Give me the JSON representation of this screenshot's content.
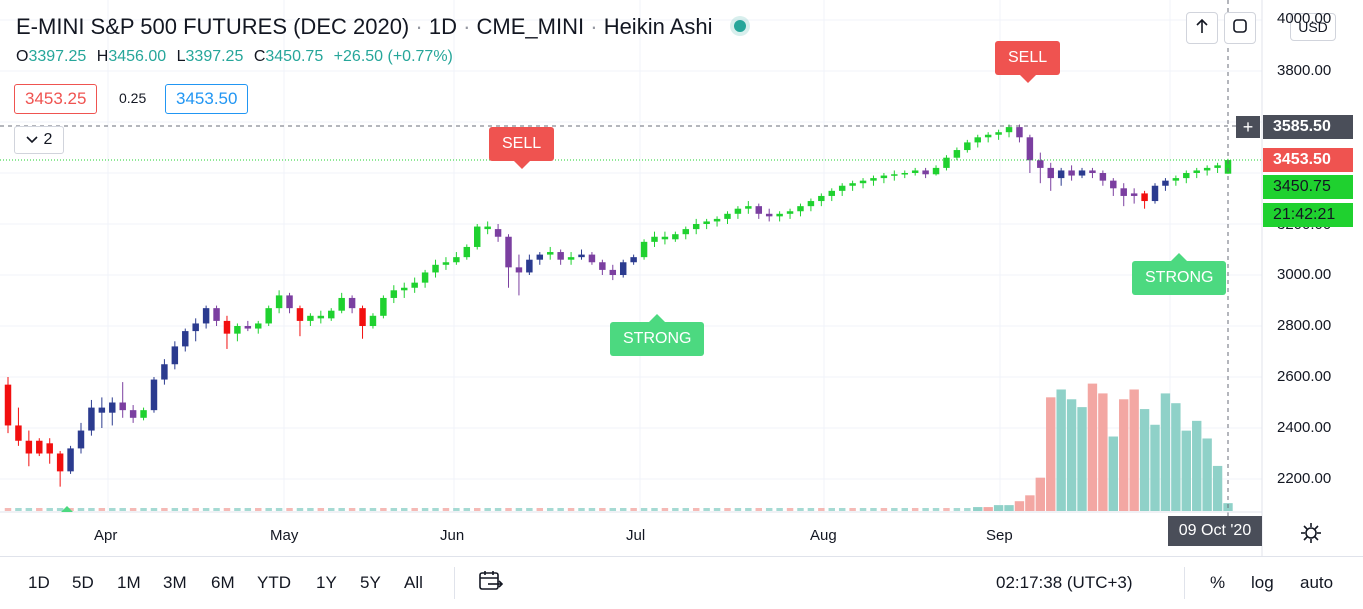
{
  "header": {
    "symbol_title": "E-MINI S&P 500 FUTURES (DEC 2020)",
    "sep": "·",
    "interval": "1D",
    "exchange": "CME_MINI",
    "chart_style": "Heikin Ashi"
  },
  "ohlc": {
    "o_label": "O",
    "o": "3397.25",
    "h_label": "H",
    "h": "3456.00",
    "l_label": "L",
    "l": "3397.25",
    "c_label": "C",
    "c": "3450.75",
    "change": "+26.50 (+0.77%)"
  },
  "quote": {
    "bid": "3453.25",
    "spread": "0.25",
    "ask": "3453.50"
  },
  "indicator_toggle": {
    "count": "2"
  },
  "currency": "USD",
  "price_axis": {
    "ticks": [
      "4000.00",
      "3800.00",
      "3000.00",
      "2800.00",
      "2600.00",
      "2400.00",
      "2200.00"
    ],
    "partial_tick": "3200.00",
    "crosshair_price": "3585.50",
    "last_price": "3453.50",
    "close_price": "3450.75",
    "countdown": "21:42:21"
  },
  "time_axis": {
    "months": [
      "Apr",
      "May",
      "Jun",
      "Jul",
      "Aug",
      "Sep"
    ],
    "crosshair_date": "09 Oct '20"
  },
  "signals": [
    {
      "type": "sell",
      "label": "SELL"
    },
    {
      "type": "sell",
      "label": "SELL"
    },
    {
      "type": "strong",
      "label": "STRONG"
    },
    {
      "type": "strong",
      "label": "STRONG"
    }
  ],
  "toolbar": {
    "ranges": [
      "1D",
      "5D",
      "1M",
      "3M",
      "6M",
      "YTD",
      "1Y",
      "5Y",
      "All"
    ],
    "clock": "02:17:38 (UTC+3)",
    "percent": "%",
    "log": "log",
    "auto": "auto"
  },
  "colors": {
    "bull": "#1fd12f",
    "bear_purple": "#7b3fa0",
    "bear_navy": "#2b3b8f",
    "red": "#f20f0f",
    "vol_up": "#8fd1c8",
    "vol_down": "#f3a7a3",
    "sell": "#ef5350",
    "strong": "#4cd980"
  },
  "chart_data": {
    "type": "candlestick",
    "price_range": [
      2100,
      4000
    ],
    "candles": [
      {
        "o": 2570,
        "h": 2600,
        "l": 2380,
        "c": 2410,
        "col": "red"
      },
      {
        "o": 2410,
        "h": 2480,
        "l": 2330,
        "c": 2350,
        "col": "red"
      },
      {
        "o": 2350,
        "h": 2390,
        "l": 2250,
        "c": 2300,
        "col": "red"
      },
      {
        "o": 2300,
        "h": 2360,
        "l": 2290,
        "c": 2350,
        "col": "red"
      },
      {
        "o": 2340,
        "h": 2360,
        "l": 2260,
        "c": 2300,
        "col": "red"
      },
      {
        "o": 2300,
        "h": 2310,
        "l": 2170,
        "c": 2230,
        "col": "red"
      },
      {
        "o": 2230,
        "h": 2330,
        "l": 2220,
        "c": 2320,
        "col": "navy"
      },
      {
        "o": 2320,
        "h": 2420,
        "l": 2300,
        "c": 2390,
        "col": "navy"
      },
      {
        "o": 2390,
        "h": 2510,
        "l": 2370,
        "c": 2480,
        "col": "navy"
      },
      {
        "o": 2480,
        "h": 2520,
        "l": 2400,
        "c": 2460,
        "col": "navy"
      },
      {
        "o": 2460,
        "h": 2520,
        "l": 2410,
        "c": 2500,
        "col": "navy"
      },
      {
        "o": 2500,
        "h": 2580,
        "l": 2440,
        "c": 2470,
        "col": "purple"
      },
      {
        "o": 2470,
        "h": 2490,
        "l": 2420,
        "c": 2440,
        "col": "purple"
      },
      {
        "o": 2440,
        "h": 2480,
        "l": 2430,
        "c": 2470,
        "col": "green"
      },
      {
        "o": 2470,
        "h": 2600,
        "l": 2460,
        "c": 2590,
        "col": "navy"
      },
      {
        "o": 2590,
        "h": 2670,
        "l": 2570,
        "c": 2650,
        "col": "navy"
      },
      {
        "o": 2650,
        "h": 2740,
        "l": 2630,
        "c": 2720,
        "col": "navy"
      },
      {
        "o": 2720,
        "h": 2790,
        "l": 2700,
        "c": 2780,
        "col": "navy"
      },
      {
        "o": 2780,
        "h": 2830,
        "l": 2740,
        "c": 2810,
        "col": "navy"
      },
      {
        "o": 2810,
        "h": 2880,
        "l": 2790,
        "c": 2870,
        "col": "navy"
      },
      {
        "o": 2870,
        "h": 2880,
        "l": 2800,
        "c": 2820,
        "col": "purple"
      },
      {
        "o": 2820,
        "h": 2840,
        "l": 2710,
        "c": 2770,
        "col": "red"
      },
      {
        "o": 2770,
        "h": 2810,
        "l": 2740,
        "c": 2800,
        "col": "green"
      },
      {
        "o": 2800,
        "h": 2820,
        "l": 2780,
        "c": 2790,
        "col": "purple"
      },
      {
        "o": 2790,
        "h": 2820,
        "l": 2770,
        "c": 2810,
        "col": "green"
      },
      {
        "o": 2810,
        "h": 2880,
        "l": 2800,
        "c": 2870,
        "col": "green"
      },
      {
        "o": 2870,
        "h": 2940,
        "l": 2850,
        "c": 2920,
        "col": "green"
      },
      {
        "o": 2920,
        "h": 2930,
        "l": 2850,
        "c": 2870,
        "col": "purple"
      },
      {
        "o": 2870,
        "h": 2880,
        "l": 2760,
        "c": 2820,
        "col": "red"
      },
      {
        "o": 2820,
        "h": 2850,
        "l": 2800,
        "c": 2840,
        "col": "green"
      },
      {
        "o": 2840,
        "h": 2860,
        "l": 2810,
        "c": 2830,
        "col": "green"
      },
      {
        "o": 2830,
        "h": 2870,
        "l": 2820,
        "c": 2860,
        "col": "green"
      },
      {
        "o": 2860,
        "h": 2930,
        "l": 2850,
        "c": 2910,
        "col": "green"
      },
      {
        "o": 2910,
        "h": 2920,
        "l": 2850,
        "c": 2870,
        "col": "purple"
      },
      {
        "o": 2870,
        "h": 2880,
        "l": 2750,
        "c": 2800,
        "col": "red"
      },
      {
        "o": 2800,
        "h": 2850,
        "l": 2790,
        "c": 2840,
        "col": "green"
      },
      {
        "o": 2840,
        "h": 2920,
        "l": 2830,
        "c": 2910,
        "col": "green"
      },
      {
        "o": 2910,
        "h": 2960,
        "l": 2890,
        "c": 2940,
        "col": "green"
      },
      {
        "o": 2940,
        "h": 2970,
        "l": 2910,
        "c": 2950,
        "col": "green"
      },
      {
        "o": 2950,
        "h": 2990,
        "l": 2930,
        "c": 2970,
        "col": "green"
      },
      {
        "o": 2970,
        "h": 3020,
        "l": 2950,
        "c": 3010,
        "col": "green"
      },
      {
        "o": 3010,
        "h": 3060,
        "l": 2990,
        "c": 3040,
        "col": "green"
      },
      {
        "o": 3040,
        "h": 3070,
        "l": 3020,
        "c": 3050,
        "col": "green"
      },
      {
        "o": 3050,
        "h": 3090,
        "l": 3040,
        "c": 3070,
        "col": "green"
      },
      {
        "o": 3070,
        "h": 3120,
        "l": 3060,
        "c": 3110,
        "col": "green"
      },
      {
        "o": 3110,
        "h": 3200,
        "l": 3100,
        "c": 3190,
        "col": "green"
      },
      {
        "o": 3190,
        "h": 3210,
        "l": 3160,
        "c": 3180,
        "col": "green"
      },
      {
        "o": 3180,
        "h": 3200,
        "l": 3130,
        "c": 3150,
        "col": "purple"
      },
      {
        "o": 3150,
        "h": 3160,
        "l": 2950,
        "c": 3030,
        "col": "purple"
      },
      {
        "o": 3030,
        "h": 3080,
        "l": 2920,
        "c": 3010,
        "col": "purple"
      },
      {
        "o": 3010,
        "h": 3080,
        "l": 3000,
        "c": 3060,
        "col": "navy"
      },
      {
        "o": 3060,
        "h": 3090,
        "l": 3040,
        "c": 3080,
        "col": "navy"
      },
      {
        "o": 3080,
        "h": 3110,
        "l": 3060,
        "c": 3090,
        "col": "green"
      },
      {
        "o": 3090,
        "h": 3100,
        "l": 3040,
        "c": 3060,
        "col": "purple"
      },
      {
        "o": 3060,
        "h": 3090,
        "l": 3040,
        "c": 3070,
        "col": "green"
      },
      {
        "o": 3070,
        "h": 3100,
        "l": 3060,
        "c": 3080,
        "col": "navy"
      },
      {
        "o": 3080,
        "h": 3090,
        "l": 3040,
        "c": 3050,
        "col": "purple"
      },
      {
        "o": 3050,
        "h": 3060,
        "l": 3000,
        "c": 3020,
        "col": "purple"
      },
      {
        "o": 3020,
        "h": 3040,
        "l": 2980,
        "c": 3000,
        "col": "purple"
      },
      {
        "o": 3000,
        "h": 3060,
        "l": 2990,
        "c": 3050,
        "col": "navy"
      },
      {
        "o": 3050,
        "h": 3080,
        "l": 3040,
        "c": 3070,
        "col": "navy"
      },
      {
        "o": 3070,
        "h": 3140,
        "l": 3060,
        "c": 3130,
        "col": "green"
      },
      {
        "o": 3130,
        "h": 3170,
        "l": 3110,
        "c": 3150,
        "col": "green"
      },
      {
        "o": 3150,
        "h": 3170,
        "l": 3120,
        "c": 3140,
        "col": "green"
      },
      {
        "o": 3140,
        "h": 3170,
        "l": 3130,
        "c": 3160,
        "col": "green"
      },
      {
        "o": 3160,
        "h": 3190,
        "l": 3140,
        "c": 3180,
        "col": "green"
      },
      {
        "o": 3180,
        "h": 3220,
        "l": 3160,
        "c": 3200,
        "col": "green"
      },
      {
        "o": 3200,
        "h": 3220,
        "l": 3180,
        "c": 3210,
        "col": "green"
      },
      {
        "o": 3210,
        "h": 3230,
        "l": 3190,
        "c": 3220,
        "col": "green"
      },
      {
        "o": 3220,
        "h": 3250,
        "l": 3200,
        "c": 3240,
        "col": "green"
      },
      {
        "o": 3240,
        "h": 3270,
        "l": 3220,
        "c": 3260,
        "col": "green"
      },
      {
        "o": 3260,
        "h": 3290,
        "l": 3240,
        "c": 3270,
        "col": "green"
      },
      {
        "o": 3270,
        "h": 3280,
        "l": 3220,
        "c": 3240,
        "col": "purple"
      },
      {
        "o": 3240,
        "h": 3260,
        "l": 3210,
        "c": 3230,
        "col": "purple"
      },
      {
        "o": 3230,
        "h": 3250,
        "l": 3210,
        "c": 3240,
        "col": "green"
      },
      {
        "o": 3240,
        "h": 3260,
        "l": 3220,
        "c": 3250,
        "col": "green"
      },
      {
        "o": 3250,
        "h": 3280,
        "l": 3230,
        "c": 3270,
        "col": "green"
      },
      {
        "o": 3270,
        "h": 3300,
        "l": 3250,
        "c": 3290,
        "col": "green"
      },
      {
        "o": 3290,
        "h": 3320,
        "l": 3270,
        "c": 3310,
        "col": "green"
      },
      {
        "o": 3310,
        "h": 3340,
        "l": 3290,
        "c": 3330,
        "col": "green"
      },
      {
        "o": 3330,
        "h": 3360,
        "l": 3310,
        "c": 3350,
        "col": "green"
      },
      {
        "o": 3350,
        "h": 3370,
        "l": 3330,
        "c": 3360,
        "col": "green"
      },
      {
        "o": 3360,
        "h": 3380,
        "l": 3340,
        "c": 3370,
        "col": "green"
      },
      {
        "o": 3370,
        "h": 3390,
        "l": 3350,
        "c": 3380,
        "col": "green"
      },
      {
        "o": 3380,
        "h": 3400,
        "l": 3360,
        "c": 3390,
        "col": "green"
      },
      {
        "o": 3390,
        "h": 3410,
        "l": 3370,
        "c": 3395,
        "col": "green"
      },
      {
        "o": 3395,
        "h": 3410,
        "l": 3380,
        "c": 3400,
        "col": "green"
      },
      {
        "o": 3400,
        "h": 3420,
        "l": 3390,
        "c": 3410,
        "col": "green"
      },
      {
        "o": 3410,
        "h": 3420,
        "l": 3380,
        "c": 3395,
        "col": "purple"
      },
      {
        "o": 3395,
        "h": 3430,
        "l": 3390,
        "c": 3420,
        "col": "green"
      },
      {
        "o": 3420,
        "h": 3470,
        "l": 3410,
        "c": 3460,
        "col": "green"
      },
      {
        "o": 3460,
        "h": 3500,
        "l": 3450,
        "c": 3490,
        "col": "green"
      },
      {
        "o": 3490,
        "h": 3530,
        "l": 3480,
        "c": 3520,
        "col": "green"
      },
      {
        "o": 3520,
        "h": 3550,
        "l": 3500,
        "c": 3540,
        "col": "green"
      },
      {
        "o": 3540,
        "h": 3560,
        "l": 3520,
        "c": 3550,
        "col": "green"
      },
      {
        "o": 3550,
        "h": 3570,
        "l": 3530,
        "c": 3560,
        "col": "green"
      },
      {
        "o": 3560,
        "h": 3590,
        "l": 3540,
        "c": 3580,
        "col": "green"
      },
      {
        "o": 3580,
        "h": 3590,
        "l": 3520,
        "c": 3540,
        "col": "purple"
      },
      {
        "o": 3540,
        "h": 3550,
        "l": 3400,
        "c": 3450,
        "col": "purple"
      },
      {
        "o": 3450,
        "h": 3480,
        "l": 3360,
        "c": 3420,
        "col": "purple"
      },
      {
        "o": 3420,
        "h": 3440,
        "l": 3330,
        "c": 3380,
        "col": "purple"
      },
      {
        "o": 3380,
        "h": 3420,
        "l": 3350,
        "c": 3410,
        "col": "navy"
      },
      {
        "o": 3410,
        "h": 3430,
        "l": 3370,
        "c": 3390,
        "col": "purple"
      },
      {
        "o": 3390,
        "h": 3420,
        "l": 3380,
        "c": 3410,
        "col": "navy"
      },
      {
        "o": 3410,
        "h": 3420,
        "l": 3380,
        "c": 3400,
        "col": "purple"
      },
      {
        "o": 3400,
        "h": 3410,
        "l": 3350,
        "c": 3370,
        "col": "purple"
      },
      {
        "o": 3370,
        "h": 3380,
        "l": 3310,
        "c": 3340,
        "col": "purple"
      },
      {
        "o": 3340,
        "h": 3360,
        "l": 3270,
        "c": 3310,
        "col": "purple"
      },
      {
        "o": 3310,
        "h": 3340,
        "l": 3280,
        "c": 3320,
        "col": "purple"
      },
      {
        "o": 3320,
        "h": 3330,
        "l": 3260,
        "c": 3290,
        "col": "red"
      },
      {
        "o": 3290,
        "h": 3360,
        "l": 3280,
        "c": 3350,
        "col": "navy"
      },
      {
        "o": 3350,
        "h": 3380,
        "l": 3330,
        "c": 3370,
        "col": "navy"
      },
      {
        "o": 3370,
        "h": 3390,
        "l": 3350,
        "c": 3380,
        "col": "green"
      },
      {
        "o": 3380,
        "h": 3410,
        "l": 3360,
        "c": 3400,
        "col": "green"
      },
      {
        "o": 3400,
        "h": 3420,
        "l": 3380,
        "c": 3410,
        "col": "green"
      },
      {
        "o": 3410,
        "h": 3430,
        "l": 3390,
        "c": 3420,
        "col": "green"
      },
      {
        "o": 3420,
        "h": 3440,
        "l": 3400,
        "c": 3430,
        "col": "green"
      },
      {
        "o": 3397.25,
        "h": 3456,
        "l": 3397.25,
        "c": 3450.75,
        "col": "green"
      }
    ],
    "volume": [
      {
        "v": 0.02,
        "d": "up"
      },
      {
        "v": 0.02,
        "d": "down"
      },
      {
        "v": 0.03,
        "d": "up"
      },
      {
        "v": 0.03,
        "d": "up"
      },
      {
        "v": 0.05,
        "d": "down"
      },
      {
        "v": 0.08,
        "d": "down"
      },
      {
        "v": 0.17,
        "d": "down"
      },
      {
        "v": 0.58,
        "d": "down"
      },
      {
        "v": 0.62,
        "d": "up"
      },
      {
        "v": 0.57,
        "d": "up"
      },
      {
        "v": 0.53,
        "d": "up"
      },
      {
        "v": 0.65,
        "d": "down"
      },
      {
        "v": 0.6,
        "d": "down"
      },
      {
        "v": 0.38,
        "d": "up"
      },
      {
        "v": 0.57,
        "d": "down"
      },
      {
        "v": 0.62,
        "d": "down"
      },
      {
        "v": 0.52,
        "d": "up"
      },
      {
        "v": 0.44,
        "d": "up"
      },
      {
        "v": 0.6,
        "d": "up"
      },
      {
        "v": 0.55,
        "d": "up"
      },
      {
        "v": 0.41,
        "d": "up"
      },
      {
        "v": 0.46,
        "d": "up"
      },
      {
        "v": 0.37,
        "d": "up"
      },
      {
        "v": 0.23,
        "d": "up"
      },
      {
        "v": 0.04,
        "d": "up"
      }
    ]
  }
}
